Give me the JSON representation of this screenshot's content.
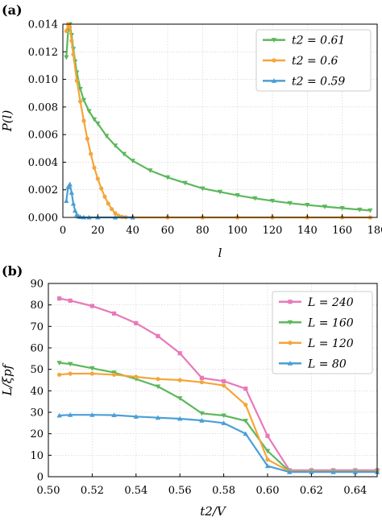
{
  "chart_data": [
    {
      "type": "line",
      "panel_label": "(a)",
      "xlabel": "l",
      "ylabel": "P(l)",
      "xlim": [
        0,
        180
      ],
      "ylim": [
        0,
        0.014
      ],
      "xticks": [
        "0",
        "20",
        "40",
        "60",
        "80",
        "100",
        "120",
        "140",
        "160",
        "180"
      ],
      "xtick_values": [
        0,
        20,
        40,
        60,
        80,
        100,
        120,
        140,
        160,
        180
      ],
      "yticks": [
        "0.000",
        "0.002",
        "0.004",
        "0.006",
        "0.008",
        "0.010",
        "0.012",
        "0.014"
      ],
      "ytick_values": [
        0,
        0.002,
        0.004,
        0.006,
        0.008,
        0.01,
        0.012,
        0.014
      ],
      "grid": true,
      "legend_position": "top-right",
      "series": [
        {
          "name": "t2 = 0.61",
          "color": "#5cb85c",
          "marker": "triangle-down",
          "x": [
            2,
            3,
            4,
            5,
            6,
            7,
            8,
            10,
            12,
            15,
            18,
            20,
            25,
            30,
            35,
            40,
            50,
            60,
            70,
            80,
            90,
            100,
            110,
            120,
            130,
            140,
            150,
            160,
            170,
            176
          ],
          "y": [
            0.0116,
            0.0135,
            0.014,
            0.0132,
            0.0122,
            0.0113,
            0.0105,
            0.0093,
            0.0085,
            0.0077,
            0.0071,
            0.0068,
            0.0059,
            0.0052,
            0.0046,
            0.0041,
            0.0034,
            0.0029,
            0.0025,
            0.0021,
            0.00185,
            0.0016,
            0.00138,
            0.0012,
            0.00103,
            0.0009,
            0.00078,
            0.00067,
            0.00056,
            0.0005
          ]
        },
        {
          "name": "t2 = 0.6",
          "color": "#f5a53a",
          "marker": "circle",
          "x": [
            2,
            3,
            4,
            5,
            6,
            8,
            10,
            12,
            14,
            16,
            18,
            20,
            22,
            24,
            26,
            28,
            30,
            32,
            34,
            36,
            40,
            60,
            80,
            100,
            120,
            140,
            160,
            176
          ],
          "y": [
            0.0135,
            0.014,
            0.0138,
            0.0128,
            0.0118,
            0.0099,
            0.0084,
            0.007,
            0.0057,
            0.0046,
            0.0036,
            0.0028,
            0.0021,
            0.0015,
            0.001,
            0.0006,
            0.0003,
            0.00012,
            4e-05,
            1e-05,
            0,
            0,
            0,
            0,
            0,
            0,
            0,
            0
          ]
        },
        {
          "name": "t2 = 0.59",
          "color": "#4a9fd6",
          "marker": "triangle-up",
          "x": [
            2,
            3,
            4,
            5,
            6,
            7,
            8,
            9,
            10,
            12,
            15,
            20,
            30,
            40
          ],
          "y": [
            0.0012,
            0.0022,
            0.0024,
            0.0018,
            0.001,
            0.0005,
            0.0002,
            8e-05,
            3e-05,
            1e-05,
            0,
            0,
            0,
            0
          ]
        }
      ]
    },
    {
      "type": "line",
      "panel_label": "(b)",
      "xlabel": "t2/V",
      "ylabel": "L/ξpf",
      "xlim": [
        0.5,
        0.65
      ],
      "ylim": [
        0,
        90
      ],
      "xticks": [
        "0.50",
        "0.52",
        "0.54",
        "0.56",
        "0.58",
        "0.60",
        "0.62",
        "0.64"
      ],
      "xtick_values": [
        0.5,
        0.52,
        0.54,
        0.56,
        0.58,
        0.6,
        0.62,
        0.64
      ],
      "yticks": [
        "0",
        "10",
        "20",
        "30",
        "40",
        "50",
        "60",
        "70",
        "80",
        "90"
      ],
      "ytick_values": [
        0,
        10,
        20,
        30,
        40,
        50,
        60,
        70,
        80,
        90
      ],
      "grid": true,
      "legend_position": "top-right",
      "x": [
        0.505,
        0.51,
        0.52,
        0.53,
        0.54,
        0.55,
        0.56,
        0.57,
        0.58,
        0.59,
        0.6,
        0.61,
        0.62,
        0.63,
        0.64,
        0.65
      ],
      "series": [
        {
          "name": "L = 240",
          "color": "#e879b9",
          "marker": "square",
          "values": [
            83,
            82,
            79.5,
            76,
            71.5,
            65.5,
            57.5,
            46,
            44.5,
            41,
            19,
            3,
            3,
            3,
            3,
            3
          ]
        },
        {
          "name": "L = 160",
          "color": "#5cb85c",
          "marker": "triangle-down",
          "values": [
            53,
            52.5,
            50.5,
            48.5,
            45.5,
            42,
            36.5,
            29.5,
            28.5,
            26,
            12,
            2.5,
            2.5,
            2.5,
            2.5,
            2.5
          ]
        },
        {
          "name": "L = 120",
          "color": "#f5a53a",
          "marker": "circle",
          "values": [
            47.5,
            48,
            48,
            47.5,
            46.5,
            45.5,
            45,
            44,
            42.5,
            33.5,
            8,
            2.5,
            2.5,
            2.5,
            2.5,
            2.5
          ]
        },
        {
          "name": "L = 80",
          "color": "#4a9fd6",
          "marker": "triangle-up",
          "values": [
            28.5,
            28.8,
            28.8,
            28.7,
            28,
            27.5,
            27,
            26.2,
            25,
            20,
            5,
            2.2,
            2.2,
            2.2,
            2.2,
            2.2
          ]
        }
      ]
    }
  ]
}
